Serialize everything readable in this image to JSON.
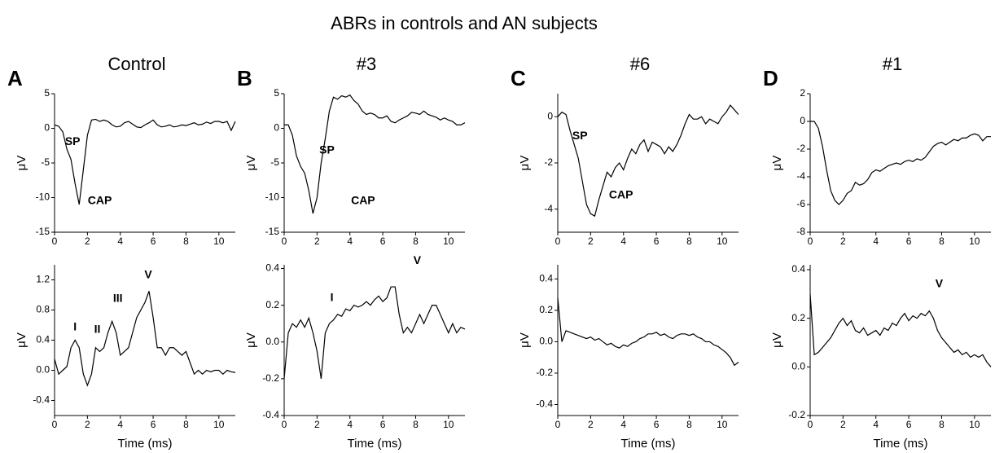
{
  "title": "ABRs in controls and AN subjects",
  "chart_data": [
    {
      "type": "line",
      "panel": "A",
      "title": "Control",
      "ylabel": "μV",
      "x": [
        0,
        0.25,
        0.5,
        0.75,
        1,
        1.25,
        1.5,
        1.75,
        2,
        2.25,
        2.5,
        2.75,
        3,
        3.25,
        3.5,
        3.75,
        4,
        4.25,
        4.5,
        4.75,
        5,
        5.25,
        5.5,
        5.75,
        6,
        6.25,
        6.5,
        6.75,
        7,
        7.25,
        7.5,
        7.75,
        8,
        8.25,
        8.5,
        8.75,
        9,
        9.25,
        9.5,
        9.75,
        10,
        10.25,
        10.5,
        10.75,
        11
      ],
      "series": [
        {
          "color": "#000000",
          "values": [
            0.5,
            0.3,
            -0.5,
            -3,
            -4.5,
            -8,
            -11,
            -6,
            -1,
            1.2,
            1.3,
            1.0,
            1.2,
            1.0,
            0.5,
            0.2,
            0.3,
            0.8,
            1.0,
            0.6,
            0.2,
            0.1,
            0.5,
            0.8,
            1.2,
            0.5,
            0.2,
            0.3,
            0.5,
            0.2,
            0.3,
            0.5,
            0.4,
            0.6,
            0.8,
            0.5,
            0.6,
            0.9,
            0.7,
            1.0,
            1.0,
            0.8,
            1.0,
            -0.3,
            1.0
          ]
        }
      ],
      "xlim": [
        0,
        11
      ],
      "xticks": [
        0,
        2,
        4,
        6,
        8,
        10
      ],
      "ylim": [
        -15,
        5
      ],
      "yticks": [
        5,
        0,
        -5,
        -10,
        -15
      ],
      "annotations": [
        {
          "text": "SP"
        },
        {
          "text": "CAP"
        }
      ]
    },
    {
      "type": "line",
      "panel": "B",
      "title": "#3",
      "ylabel": "μV",
      "x": [
        0,
        0.25,
        0.5,
        0.75,
        1,
        1.25,
        1.5,
        1.75,
        2,
        2.25,
        2.5,
        2.75,
        3,
        3.25,
        3.5,
        3.75,
        4,
        4.25,
        4.5,
        4.75,
        5,
        5.25,
        5.5,
        5.75,
        6,
        6.25,
        6.5,
        6.75,
        7,
        7.25,
        7.5,
        7.75,
        8,
        8.25,
        8.5,
        8.75,
        9,
        9.25,
        9.5,
        9.75,
        10,
        10.25,
        10.5,
        10.75,
        11
      ],
      "series": [
        {
          "color": "#000000",
          "values": [
            0.5,
            0.5,
            -1,
            -4,
            -5.5,
            -6.5,
            -9,
            -12.3,
            -10,
            -5,
            -1.5,
            2.5,
            4.5,
            4.2,
            4.7,
            4.5,
            4.8,
            4,
            3.5,
            2.5,
            2,
            2.2,
            2.0,
            1.5,
            1.5,
            1.8,
            1.0,
            0.8,
            1.2,
            1.5,
            1.8,
            2.3,
            2.2,
            2.0,
            2.5,
            2.0,
            1.8,
            1.6,
            1.2,
            1.5,
            1.2,
            1.0,
            0.5,
            0.5,
            0.8
          ]
        }
      ],
      "xlim": [
        0,
        11
      ],
      "xticks": [
        0,
        2,
        4,
        6,
        8,
        10
      ],
      "ylim": [
        -15,
        5
      ],
      "yticks": [
        5,
        0,
        -5,
        -10,
        -15
      ],
      "annotations": [
        {
          "text": "SP"
        },
        {
          "text": "CAP"
        }
      ]
    },
    {
      "type": "line",
      "panel": "C",
      "title": "#6",
      "ylabel": "μV",
      "x": [
        0,
        0.25,
        0.5,
        0.75,
        1,
        1.25,
        1.5,
        1.75,
        2,
        2.25,
        2.5,
        2.75,
        3,
        3.25,
        3.5,
        3.75,
        4,
        4.25,
        4.5,
        4.75,
        5,
        5.25,
        5.5,
        5.75,
        6,
        6.25,
        6.5,
        6.75,
        7,
        7.25,
        7.5,
        7.75,
        8,
        8.25,
        8.5,
        8.75,
        9,
        9.25,
        9.5,
        9.75,
        10,
        10.25,
        10.5,
        10.75,
        11
      ],
      "series": [
        {
          "color": "#000000",
          "values": [
            0,
            0.2,
            0.1,
            -0.6,
            -1.2,
            -1.8,
            -2.8,
            -3.8,
            -4.2,
            -4.3,
            -3.6,
            -3.0,
            -2.4,
            -2.6,
            -2.2,
            -2.0,
            -2.3,
            -1.8,
            -1.4,
            -1.6,
            -1.2,
            -1.0,
            -1.5,
            -1.1,
            -1.2,
            -1.3,
            -1.6,
            -1.3,
            -1.5,
            -1.2,
            -0.8,
            -0.3,
            0.1,
            -0.1,
            -0.1,
            0.0,
            -0.3,
            -0.1,
            -0.2,
            -0.3,
            0.0,
            0.2,
            0.5,
            0.3,
            0.1
          ]
        }
      ],
      "xlim": [
        0,
        11
      ],
      "xticks": [
        0,
        2,
        4,
        6,
        8,
        10
      ],
      "ylim": [
        -5,
        1
      ],
      "yticks": [
        0,
        -2,
        -4
      ],
      "annotations": [
        {
          "text": "SP"
        },
        {
          "text": "CAP"
        }
      ]
    },
    {
      "type": "line",
      "panel": "D",
      "title": "#1",
      "ylabel": "μV",
      "x": [
        0,
        0.25,
        0.5,
        0.75,
        1,
        1.25,
        1.5,
        1.75,
        2,
        2.25,
        2.5,
        2.75,
        3,
        3.25,
        3.5,
        3.75,
        4,
        4.25,
        4.5,
        4.75,
        5,
        5.25,
        5.5,
        5.75,
        6,
        6.25,
        6.5,
        6.75,
        7,
        7.25,
        7.5,
        7.75,
        8,
        8.25,
        8.5,
        8.75,
        9,
        9.25,
        9.5,
        9.75,
        10,
        10.25,
        10.5,
        10.75,
        11
      ],
      "series": [
        {
          "color": "#000000",
          "values": [
            0,
            0,
            -0.5,
            -1.8,
            -3.5,
            -5.0,
            -5.7,
            -6.0,
            -5.7,
            -5.2,
            -5.0,
            -4.4,
            -4.6,
            -4.5,
            -4.2,
            -3.7,
            -3.5,
            -3.6,
            -3.4,
            -3.2,
            -3.1,
            -3.0,
            -3.1,
            -2.9,
            -2.8,
            -2.9,
            -2.7,
            -2.8,
            -2.6,
            -2.2,
            -1.8,
            -1.6,
            -1.5,
            -1.7,
            -1.5,
            -1.3,
            -1.4,
            -1.2,
            -1.2,
            -1.0,
            -0.9,
            -1.0,
            -1.4,
            -1.1,
            -1.1
          ]
        }
      ],
      "xlim": [
        0,
        11
      ],
      "xticks": [
        0,
        2,
        4,
        6,
        8,
        10
      ],
      "ylim": [
        -8,
        2
      ],
      "yticks": [
        2,
        0,
        -2,
        -4,
        -6,
        -8
      ]
    },
    {
      "type": "line",
      "ylabel": "μV",
      "xlabel": "Time (ms)",
      "x": [
        0,
        0.25,
        0.5,
        0.75,
        1,
        1.25,
        1.5,
        1.75,
        2,
        2.25,
        2.5,
        2.75,
        3,
        3.25,
        3.5,
        3.75,
        4,
        4.25,
        4.5,
        4.75,
        5,
        5.25,
        5.5,
        5.75,
        6,
        6.25,
        6.5,
        6.75,
        7,
        7.25,
        7.5,
        7.75,
        8,
        8.25,
        8.5,
        8.75,
        9,
        9.25,
        9.5,
        9.75,
        10,
        10.25,
        10.5,
        10.75,
        11
      ],
      "series": [
        {
          "color": "#000000",
          "values": [
            0.15,
            -0.05,
            0.0,
            0.05,
            0.3,
            0.4,
            0.3,
            -0.05,
            -0.2,
            -0.05,
            0.3,
            0.25,
            0.3,
            0.5,
            0.65,
            0.5,
            0.2,
            0.25,
            0.3,
            0.5,
            0.7,
            0.8,
            0.9,
            1.05,
            0.7,
            0.3,
            0.3,
            0.2,
            0.3,
            0.3,
            0.25,
            0.2,
            0.25,
            0.1,
            -0.05,
            0.0,
            -0.05,
            0.0,
            -0.02,
            0.0,
            0.0,
            -0.05,
            0.0,
            -0.02,
            -0.03
          ]
        }
      ],
      "xlim": [
        0,
        11
      ],
      "xticks": [
        0,
        2,
        4,
        6,
        8,
        10
      ],
      "ylim": [
        -0.6,
        1.4
      ],
      "yticks": [
        1.2,
        0.8,
        0.4,
        {
          "value": 0,
          "label": "0.0"
        },
        -0.4
      ],
      "annotations": [
        {
          "text": "I"
        },
        {
          "text": "II"
        },
        {
          "text": "III"
        },
        {
          "text": "V"
        }
      ]
    },
    {
      "type": "line",
      "ylabel": "μV",
      "xlabel": "Time (ms)",
      "x": [
        0,
        0.25,
        0.5,
        0.75,
        1,
        1.25,
        1.5,
        1.75,
        2,
        2.25,
        2.5,
        2.75,
        3,
        3.25,
        3.5,
        3.75,
        4,
        4.25,
        4.5,
        4.75,
        5,
        5.25,
        5.5,
        5.75,
        6,
        6.25,
        6.5,
        6.75,
        7,
        7.25,
        7.5,
        7.75,
        8,
        8.25,
        8.5,
        8.75,
        9,
        9.25,
        9.5,
        9.75,
        10,
        10.25,
        10.5,
        10.75,
        11
      ],
      "series": [
        {
          "color": "#000000",
          "values": [
            -0.2,
            0.05,
            0.1,
            0.08,
            0.12,
            0.08,
            0.13,
            0.05,
            -0.05,
            -0.2,
            0.05,
            0.1,
            0.12,
            0.15,
            0.14,
            0.18,
            0.17,
            0.2,
            0.19,
            0.2,
            0.22,
            0.2,
            0.23,
            0.25,
            0.22,
            0.24,
            0.3,
            0.3,
            0.15,
            0.05,
            0.08,
            0.05,
            0.1,
            0.15,
            0.1,
            0.15,
            0.2,
            0.2,
            0.15,
            0.1,
            0.05,
            0.1,
            0.05,
            0.08,
            0.07
          ]
        }
      ],
      "xlim": [
        0,
        11
      ],
      "xticks": [
        0,
        2,
        4,
        6,
        8,
        10
      ],
      "ylim": [
        -0.4,
        0.42
      ],
      "yticks": [
        0.4,
        0.2,
        {
          "value": 0,
          "label": "0.0"
        },
        -0.2,
        -0.4
      ],
      "annotations": [
        {
          "text": "I"
        },
        {
          "text": "V"
        }
      ]
    },
    {
      "type": "line",
      "ylabel": "μV",
      "xlabel": "Time (ms)",
      "x": [
        0,
        0.25,
        0.5,
        0.75,
        1,
        1.25,
        1.5,
        1.75,
        2,
        2.25,
        2.5,
        2.75,
        3,
        3.25,
        3.5,
        3.75,
        4,
        4.25,
        4.5,
        4.75,
        5,
        5.25,
        5.5,
        5.75,
        6,
        6.25,
        6.5,
        6.75,
        7,
        7.25,
        7.5,
        7.75,
        8,
        8.25,
        8.5,
        8.75,
        9,
        9.25,
        9.5,
        9.75,
        10,
        10.25,
        10.5,
        10.75,
        11
      ],
      "series": [
        {
          "color": "#000000",
          "values": [
            0.28,
            0.0,
            0.07,
            0.06,
            0.05,
            0.04,
            0.03,
            0.02,
            0.03,
            0.01,
            0.02,
            0.0,
            -0.02,
            -0.01,
            -0.03,
            -0.04,
            -0.02,
            -0.03,
            -0.01,
            0.0,
            0.02,
            0.03,
            0.05,
            0.05,
            0.06,
            0.04,
            0.05,
            0.03,
            0.02,
            0.04,
            0.05,
            0.05,
            0.04,
            0.05,
            0.03,
            0.02,
            0.0,
            0.0,
            -0.02,
            -0.03,
            -0.05,
            -0.07,
            -0.1,
            -0.15,
            -0.13
          ]
        }
      ],
      "xlim": [
        0,
        11
      ],
      "xticks": [
        0,
        2,
        4,
        6,
        8,
        10
      ],
      "ylim": [
        -0.47,
        0.49
      ],
      "yticks": [
        0.4,
        0.2,
        {
          "value": 0,
          "label": "0.0"
        },
        -0.2,
        -0.4
      ]
    },
    {
      "type": "line",
      "ylabel": "μV",
      "xlabel": "Time (ms)",
      "x": [
        0,
        0.25,
        0.5,
        0.75,
        1,
        1.25,
        1.5,
        1.75,
        2,
        2.25,
        2.5,
        2.75,
        3,
        3.25,
        3.5,
        3.75,
        4,
        4.25,
        4.5,
        4.75,
        5,
        5.25,
        5.5,
        5.75,
        6,
        6.25,
        6.5,
        6.75,
        7,
        7.25,
        7.5,
        7.75,
        8,
        8.25,
        8.5,
        8.75,
        9,
        9.25,
        9.5,
        9.75,
        10,
        10.25,
        10.5,
        10.75,
        11
      ],
      "series": [
        {
          "color": "#000000",
          "values": [
            0.3,
            0.05,
            0.06,
            0.08,
            0.1,
            0.12,
            0.15,
            0.18,
            0.2,
            0.17,
            0.19,
            0.15,
            0.14,
            0.16,
            0.13,
            0.14,
            0.15,
            0.13,
            0.16,
            0.15,
            0.18,
            0.17,
            0.2,
            0.22,
            0.19,
            0.21,
            0.2,
            0.22,
            0.21,
            0.23,
            0.2,
            0.15,
            0.12,
            0.1,
            0.08,
            0.06,
            0.07,
            0.05,
            0.06,
            0.04,
            0.05,
            0.04,
            0.05,
            0.02,
            0.0
          ]
        }
      ],
      "xlim": [
        0,
        11
      ],
      "xticks": [
        0,
        2,
        4,
        6,
        8,
        10
      ],
      "ylim": [
        -0.2,
        0.42
      ],
      "yticks": [
        0.4,
        0.2,
        {
          "value": 0,
          "label": "0.0"
        },
        -0.2
      ],
      "annotations": [
        {
          "text": "V"
        }
      ]
    }
  ]
}
